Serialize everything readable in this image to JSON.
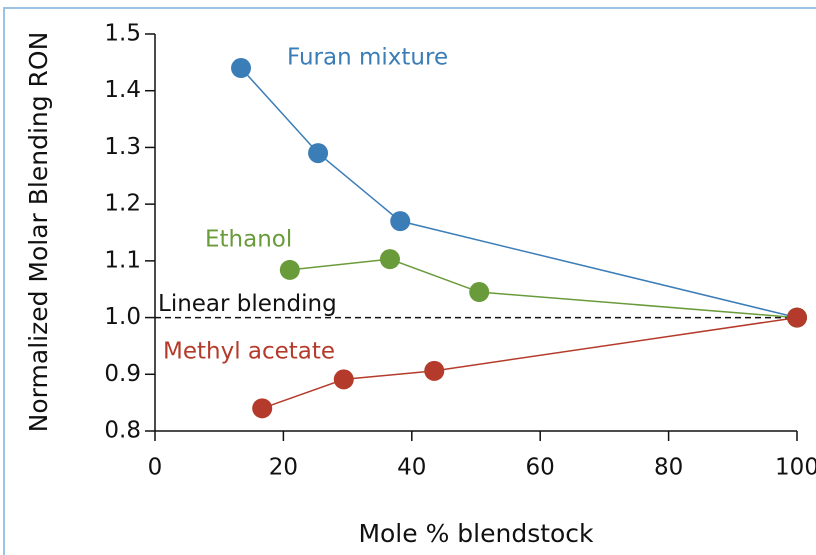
{
  "chart_data": {
    "type": "line",
    "xlabel": "Mole % blendstock",
    "ylabel": "Normalized Molar Blending RON",
    "xlim": [
      0,
      100
    ],
    "ylim": [
      0.8,
      1.5
    ],
    "xticks": [
      0,
      20,
      40,
      60,
      80,
      100
    ],
    "yticks": [
      0.8,
      0.9,
      {
        "value": 1,
        "label": "1.0"
      },
      1.1,
      1.2,
      1.3,
      1.4,
      1.5
    ],
    "reference_line": {
      "label": "Linear blending",
      "value": 1
    },
    "series": [
      {
        "name": "Furan mixture",
        "color": "#3b7db6",
        "x": [
          13.4,
          25.4,
          38.2,
          100
        ],
        "values": [
          1.44,
          1.29,
          1.17,
          1.0
        ]
      },
      {
        "name": "Ethanol",
        "color": "#6a9b3b",
        "x": [
          21.0,
          36.6,
          50.5,
          100
        ],
        "values": [
          1.084,
          1.103,
          1.045,
          1.0
        ]
      },
      {
        "name": "Methyl acetate",
        "color": "#b43b2b",
        "x": [
          16.7,
          29.4,
          43.5,
          100
        ],
        "values": [
          0.84,
          0.891,
          0.906,
          1.0
        ]
      }
    ]
  }
}
